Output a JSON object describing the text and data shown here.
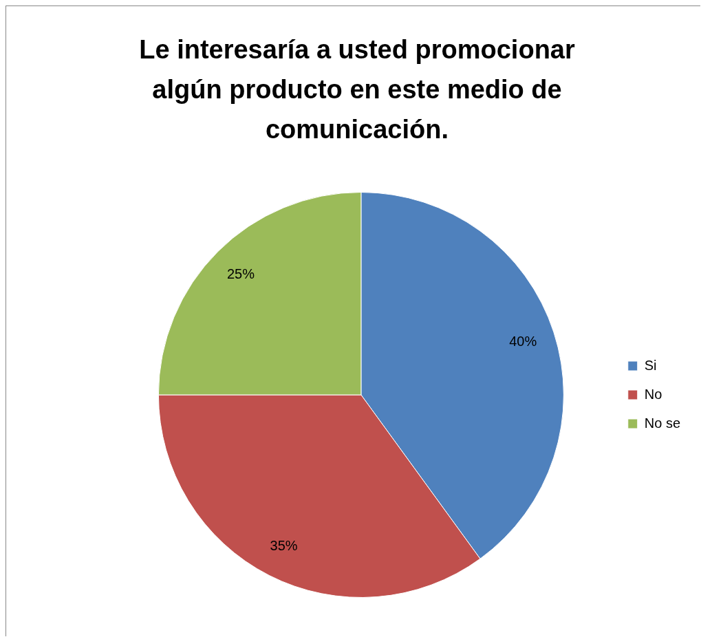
{
  "chart_data": {
    "type": "pie",
    "title": "Le interesaría a usted promocionar algún producto en este medio de comunicación.",
    "categories": [
      "Si",
      "No",
      "No se"
    ],
    "values": [
      40,
      35,
      25
    ],
    "colors": [
      "#4f81bd",
      "#c0504d",
      "#9bbb59"
    ],
    "value_labels": [
      "40%",
      "35%",
      "25%"
    ],
    "legend": "right"
  }
}
